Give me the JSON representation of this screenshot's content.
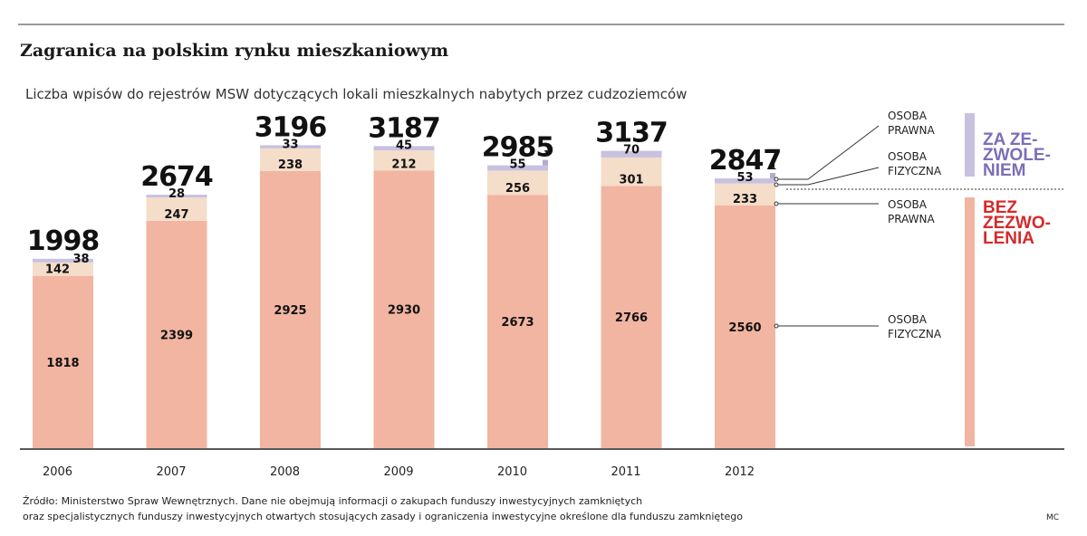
{
  "title": "Zagranica na polskim rynku mieszkaniowym",
  "subtitle": "Liczba wpisów do rejestrów MSW dotyczących lokali mieszkalnych nabytych przez cudzoziemców",
  "source_line1": "Źródło: Ministerstwo Spraw Wewnętrznych. Dane nie obejmują informacji o zakupach funduszy inwestycyjnych zamkniętych",
  "source_line2": "oraz specjalistycznych funduszy inwestycyjnych otwartych stosujących zasady i ograniczenia inwestycyjne określone dla funduszu zamkniętego",
  "credit": "MC",
  "legend": {
    "za_prawna": [
      "OSOBA",
      "PRAWNA"
    ],
    "za_fizyczna": [
      "OSOBA",
      "FIZYCZNA"
    ],
    "bez_prawna": [
      "OSOBA",
      "PRAWNA"
    ],
    "bez_fizyczna": [
      "OSOBA",
      "FIZYCZNA"
    ],
    "group_za": [
      "ZA ZE-",
      "ZWOLE-",
      "NIEM"
    ],
    "group_bez": [
      "BEZ",
      "ZEZWO-",
      "LENIA"
    ]
  },
  "colors": {
    "bez_fizyczna": "#f2b5a1",
    "bez_prawna": "#f4ddc9",
    "za_fizyczna": "#c8c1e0",
    "za_prawna": "#b4aad6",
    "group_za": "#7d6db8",
    "group_bez": "#d42a2a"
  },
  "chart_data": {
    "type": "bar",
    "stacked": true,
    "categories": [
      "2006",
      "2007",
      "2008",
      "2009",
      "2010",
      "2011",
      "2012"
    ],
    "totals": [
      "1998",
      "2674",
      "3196",
      "3187",
      "2985",
      "3137",
      "2847"
    ],
    "series": [
      {
        "key": "bez_fizyczna",
        "values": [
          1818,
          2399,
          2925,
          2930,
          2673,
          2766,
          2560
        ]
      },
      {
        "key": "bez_prawna",
        "values": [
          142,
          247,
          238,
          212,
          256,
          301,
          233
        ]
      },
      {
        "key": "za_fizyczna",
        "values": [
          38,
          28,
          33,
          45,
          55,
          70,
          53
        ]
      },
      {
        "key": "za_prawna",
        "values": [
          0,
          0,
          0,
          0,
          1,
          0,
          1
        ]
      }
    ],
    "ylim": [
      0,
      3200
    ],
    "grid": false
  }
}
